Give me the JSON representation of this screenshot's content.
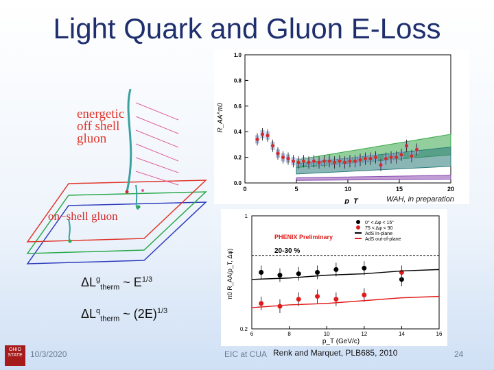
{
  "slide": {
    "title": "Light Quark and Gluon E-Loss",
    "date": "10/3/2020",
    "center_text": "EIC at CUA",
    "reference": "Renk and Marquet, PLB685, 2010",
    "page": "24"
  },
  "illustration": {
    "energetic_label": "energetic\noff shell\ngluon",
    "onshell_label": "on−shell gluon"
  },
  "equations": {
    "eq1_base": "ΔL",
    "eq1_sup": "g",
    "eq1_sub": "therm",
    "eq1_rhs": " ~ E",
    "eq1_exp": "1/3",
    "eq2_base": "ΔL",
    "eq2_sup": "q",
    "eq2_sub": "therm",
    "eq2_rhs": " ~ (2E)",
    "eq2_exp": "1/3"
  },
  "wah_label": "WAH, in preparation",
  "chart_data": [
    {
      "type": "scatter",
      "ylabel": "R_AA^π0",
      "xlabel": "p_T",
      "xlim": [
        0,
        20
      ],
      "ylim": [
        0,
        1.0
      ],
      "xticks": [
        "0",
        "5",
        "10",
        "15",
        "20"
      ],
      "yticks": [
        "0.0",
        "0.2",
        "0.4",
        "0.6",
        "0.8",
        "1.0"
      ],
      "series": [
        {
          "name": "data",
          "color": "#d42a2a",
          "x": [
            1.2,
            1.7,
            2.2,
            2.7,
            3.2,
            3.7,
            4.2,
            4.7,
            5.2,
            5.7,
            6.2,
            6.7,
            7.2,
            7.7,
            8.2,
            8.7,
            9.2,
            9.7,
            10.2,
            10.7,
            11.2,
            11.7,
            12.2,
            12.7,
            13.2,
            13.7,
            14.2,
            14.7,
            15.2,
            15.7,
            16.2,
            16.7
          ],
          "y": [
            0.34,
            0.38,
            0.37,
            0.29,
            0.23,
            0.2,
            0.19,
            0.17,
            0.16,
            0.17,
            0.16,
            0.17,
            0.16,
            0.17,
            0.17,
            0.16,
            0.17,
            0.16,
            0.17,
            0.17,
            0.18,
            0.19,
            0.19,
            0.2,
            0.14,
            0.19,
            0.2,
            0.2,
            0.22,
            0.29,
            0.21,
            0.26
          ]
        }
      ],
      "bands": [
        {
          "name": "green",
          "color": "#3aa84a",
          "lower": [
            0.12,
            0.22
          ],
          "upper": [
            0.18,
            0.38
          ]
        },
        {
          "name": "teal",
          "color": "#2a7a7a",
          "lower": [
            0.07,
            0.13
          ],
          "upper": [
            0.15,
            0.28
          ]
        },
        {
          "name": "purple",
          "color": "#8a4ab0",
          "lower": [
            0.02,
            0.03
          ],
          "upper": [
            0.04,
            0.06
          ]
        }
      ]
    },
    {
      "type": "line",
      "title": "PHENIX Preliminary",
      "subtitle": "20-30 %",
      "ylabel": "π0 R_AA(p_T, Δφ)",
      "xlabel": "p_T (GeV/c)",
      "xlim": [
        6,
        16
      ],
      "ylim": [
        0.2,
        1.0
      ],
      "xticks": [
        "6",
        "8",
        "10",
        "12",
        "14",
        "16"
      ],
      "yticks": [
        "0.2",
        "1"
      ],
      "legend": [
        {
          "label": "0° < Δφ < 15°",
          "color": "#000000",
          "marker": "dot"
        },
        {
          "label": "75 < Δφ < 90",
          "color": "#e11b1b",
          "marker": "dot"
        },
        {
          "label": "AdS in-plane",
          "color": "#000000",
          "marker": "line"
        },
        {
          "label": "AdS out-of-plane",
          "color": "#e11b1b",
          "marker": "line"
        }
      ],
      "series": [
        {
          "name": "in-plane",
          "color": "#000000",
          "x": [
            6.5,
            7.5,
            8.5,
            9.5,
            10.5,
            12.0,
            14.0
          ],
          "y": [
            0.6,
            0.58,
            0.59,
            0.6,
            0.62,
            0.63,
            0.55
          ]
        },
        {
          "name": "out-of-plane",
          "color": "#e11b1b",
          "x": [
            6.5,
            7.5,
            8.5,
            9.5,
            10.5,
            12.0,
            14.0
          ],
          "y": [
            0.38,
            0.36,
            0.41,
            0.43,
            0.41,
            0.44,
            0.6
          ]
        },
        {
          "name": "AdS in-plane",
          "color": "#000000",
          "x": [
            6,
            8,
            10,
            12,
            14,
            16
          ],
          "y": [
            0.55,
            0.56,
            0.58,
            0.59,
            0.61,
            0.62
          ]
        },
        {
          "name": "AdS out-of-plane",
          "color": "#e11b1b",
          "x": [
            6,
            8,
            10,
            12,
            14,
            16
          ],
          "y": [
            0.35,
            0.37,
            0.38,
            0.4,
            0.42,
            0.43
          ]
        }
      ]
    }
  ]
}
